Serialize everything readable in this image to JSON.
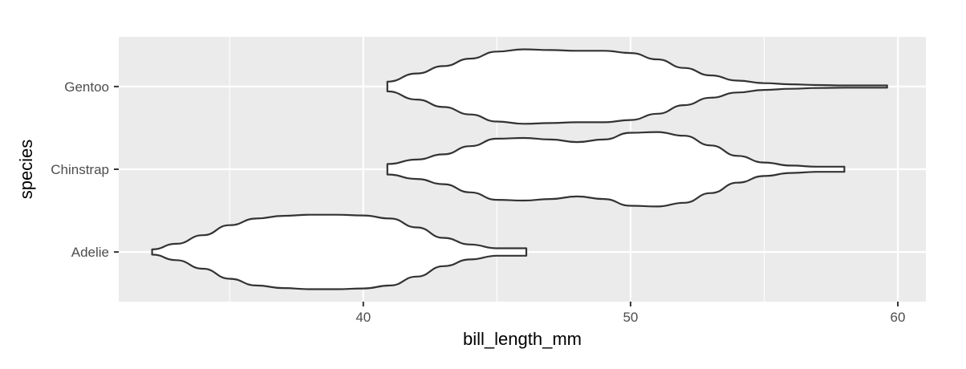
{
  "chart_data": {
    "type": "violin",
    "orientation": "horizontal",
    "xlabel": "bill_length_mm",
    "ylabel": "species",
    "xlim": [
      30.85,
      61.05
    ],
    "x_ticks": [
      40,
      50,
      60
    ],
    "x_minor_ticks": [
      35,
      45,
      55
    ],
    "categories": [
      "Adelie",
      "Chinstrap",
      "Gentoo"
    ],
    "grid": true,
    "panel_background": "#ebebeb",
    "grid_color": "#ffffff",
    "violin_fill": "#ffffff",
    "violin_stroke": "#333333",
    "violins": [
      {
        "category": "Adelie",
        "x": [
          32.1,
          33.0,
          34.0,
          35.0,
          36.0,
          37.0,
          38.0,
          39.0,
          40.0,
          41.0,
          42.0,
          43.0,
          44.0,
          45.0,
          46.1
        ],
        "width": [
          0.07,
          0.22,
          0.45,
          0.72,
          0.9,
          0.97,
          1.0,
          1.0,
          0.98,
          0.9,
          0.66,
          0.38,
          0.2,
          0.1,
          0.1
        ]
      },
      {
        "category": "Chinstrap",
        "x": [
          40.9,
          42.0,
          43.0,
          44.0,
          45.0,
          46.0,
          47.0,
          48.0,
          49.0,
          50.0,
          51.0,
          52.0,
          53.0,
          54.0,
          55.0,
          56.0,
          57.0,
          58.0
        ],
        "width": [
          0.14,
          0.26,
          0.4,
          0.62,
          0.82,
          0.84,
          0.8,
          0.73,
          0.8,
          0.98,
          1.0,
          0.9,
          0.64,
          0.36,
          0.18,
          0.1,
          0.07,
          0.07
        ]
      },
      {
        "category": "Gentoo",
        "x": [
          40.9,
          42.0,
          43.0,
          44.0,
          45.0,
          46.0,
          47.0,
          48.0,
          49.0,
          50.0,
          51.0,
          52.0,
          53.0,
          54.0,
          55.0,
          56.0,
          57.0,
          58.0,
          59.6
        ],
        "width": [
          0.13,
          0.35,
          0.55,
          0.75,
          0.94,
          1.0,
          0.98,
          0.96,
          0.96,
          0.9,
          0.73,
          0.5,
          0.3,
          0.16,
          0.09,
          0.06,
          0.04,
          0.03,
          0.03
        ]
      }
    ]
  }
}
